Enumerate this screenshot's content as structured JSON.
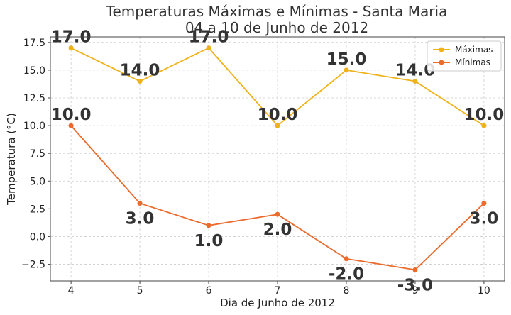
{
  "chart_data": {
    "type": "line",
    "title": "Temperaturas Máximas e Mínimas - Santa Maria",
    "subtitle": "04 a 10 de Junho de 2012",
    "xlabel": "Dia de Junho de 2012",
    "ylabel": "Temperatura (°C)",
    "x": [
      4,
      5,
      6,
      7,
      8,
      9,
      10
    ],
    "xlim": [
      3.7,
      10.3
    ],
    "ylim": [
      -4.0,
      18.0
    ],
    "yticks": [
      -2.5,
      0.0,
      2.5,
      5.0,
      7.5,
      10.0,
      12.5,
      15.0,
      17.5
    ],
    "ytick_labels": [
      "−2.5",
      "0.0",
      "2.5",
      "5.0",
      "7.5",
      "10.0",
      "12.5",
      "15.0",
      "17.5"
    ],
    "grid": true,
    "legend_position": "top-right",
    "series": [
      {
        "name": "Máximas",
        "color": "#f0b21a",
        "values": [
          17.0,
          14.0,
          17.0,
          10.0,
          15.0,
          14.0,
          10.0
        ],
        "data_labels": [
          "17.0",
          "14.0",
          "17.0",
          "10.0",
          "15.0",
          "14.0",
          "10.0"
        ]
      },
      {
        "name": "Mínimas",
        "color": "#ea6b2c",
        "values": [
          10.0,
          3.0,
          1.0,
          2.0,
          -2.0,
          -3.0,
          3.0
        ],
        "data_labels": [
          "10.0",
          "3.0",
          "1.0",
          "2.0",
          "-2.0",
          "-3.0",
          "3.0"
        ]
      }
    ]
  }
}
